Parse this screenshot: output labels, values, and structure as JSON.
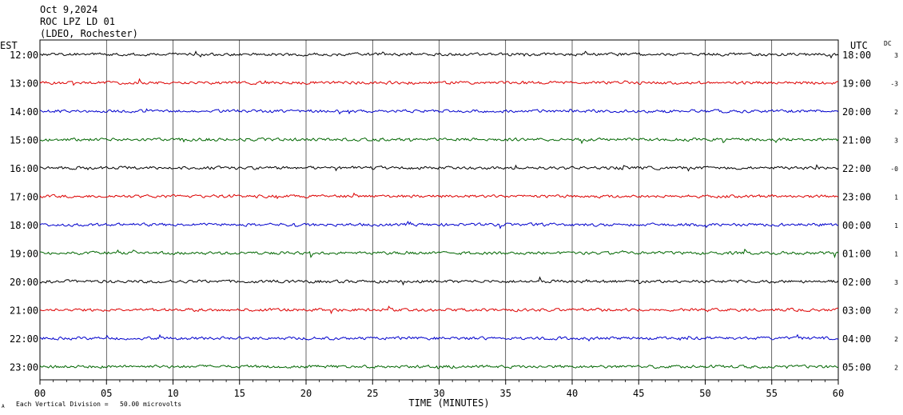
{
  "header": {
    "date": "Oct 9,2024",
    "station": "ROC LPZ LD 01",
    "network": "(LDEO, Rochester)"
  },
  "footer": {
    "icon_text": "A",
    "scale_note": "Each Vertical Division =   50.00 microvolts"
  },
  "chart_data": {
    "type": "line",
    "chart_kind": "helicorder seismogram",
    "xlabel": "TIME (MINUTES)",
    "xlim": [
      0,
      60
    ],
    "x_ticks": [
      0,
      5,
      10,
      15,
      20,
      25,
      30,
      35,
      40,
      45,
      50,
      55,
      60
    ],
    "x_tick_labels": [
      "00",
      "05",
      "10",
      "15",
      "20",
      "25",
      "30",
      "35",
      "40",
      "45",
      "50",
      "55",
      "60"
    ],
    "left_axis_title": "EST",
    "right_axis_title": "UTC",
    "dc_title": "DC",
    "grid": true,
    "trace_colors": [
      "#000000",
      "#dd0000",
      "#0000cc",
      "#006600"
    ],
    "rows": [
      {
        "est": "12:00",
        "utc": "18:00",
        "dc": "3"
      },
      {
        "est": "13:00",
        "utc": "19:00",
        "dc": "-3"
      },
      {
        "est": "14:00",
        "utc": "20:00",
        "dc": "2"
      },
      {
        "est": "15:00",
        "utc": "21:00",
        "dc": "3"
      },
      {
        "est": "16:00",
        "utc": "22:00",
        "dc": "-0"
      },
      {
        "est": "17:00",
        "utc": "23:00",
        "dc": "1"
      },
      {
        "est": "18:00",
        "utc": "00:00",
        "dc": "1"
      },
      {
        "est": "19:00",
        "utc": "01:00",
        "dc": "1"
      },
      {
        "est": "20:00",
        "utc": "02:00",
        "dc": "3"
      },
      {
        "est": "21:00",
        "utc": "03:00",
        "dc": "2"
      },
      {
        "est": "22:00",
        "utc": "04:00",
        "dc": "2"
      },
      {
        "est": "23:00",
        "utc": "05:00",
        "dc": "2"
      }
    ]
  }
}
